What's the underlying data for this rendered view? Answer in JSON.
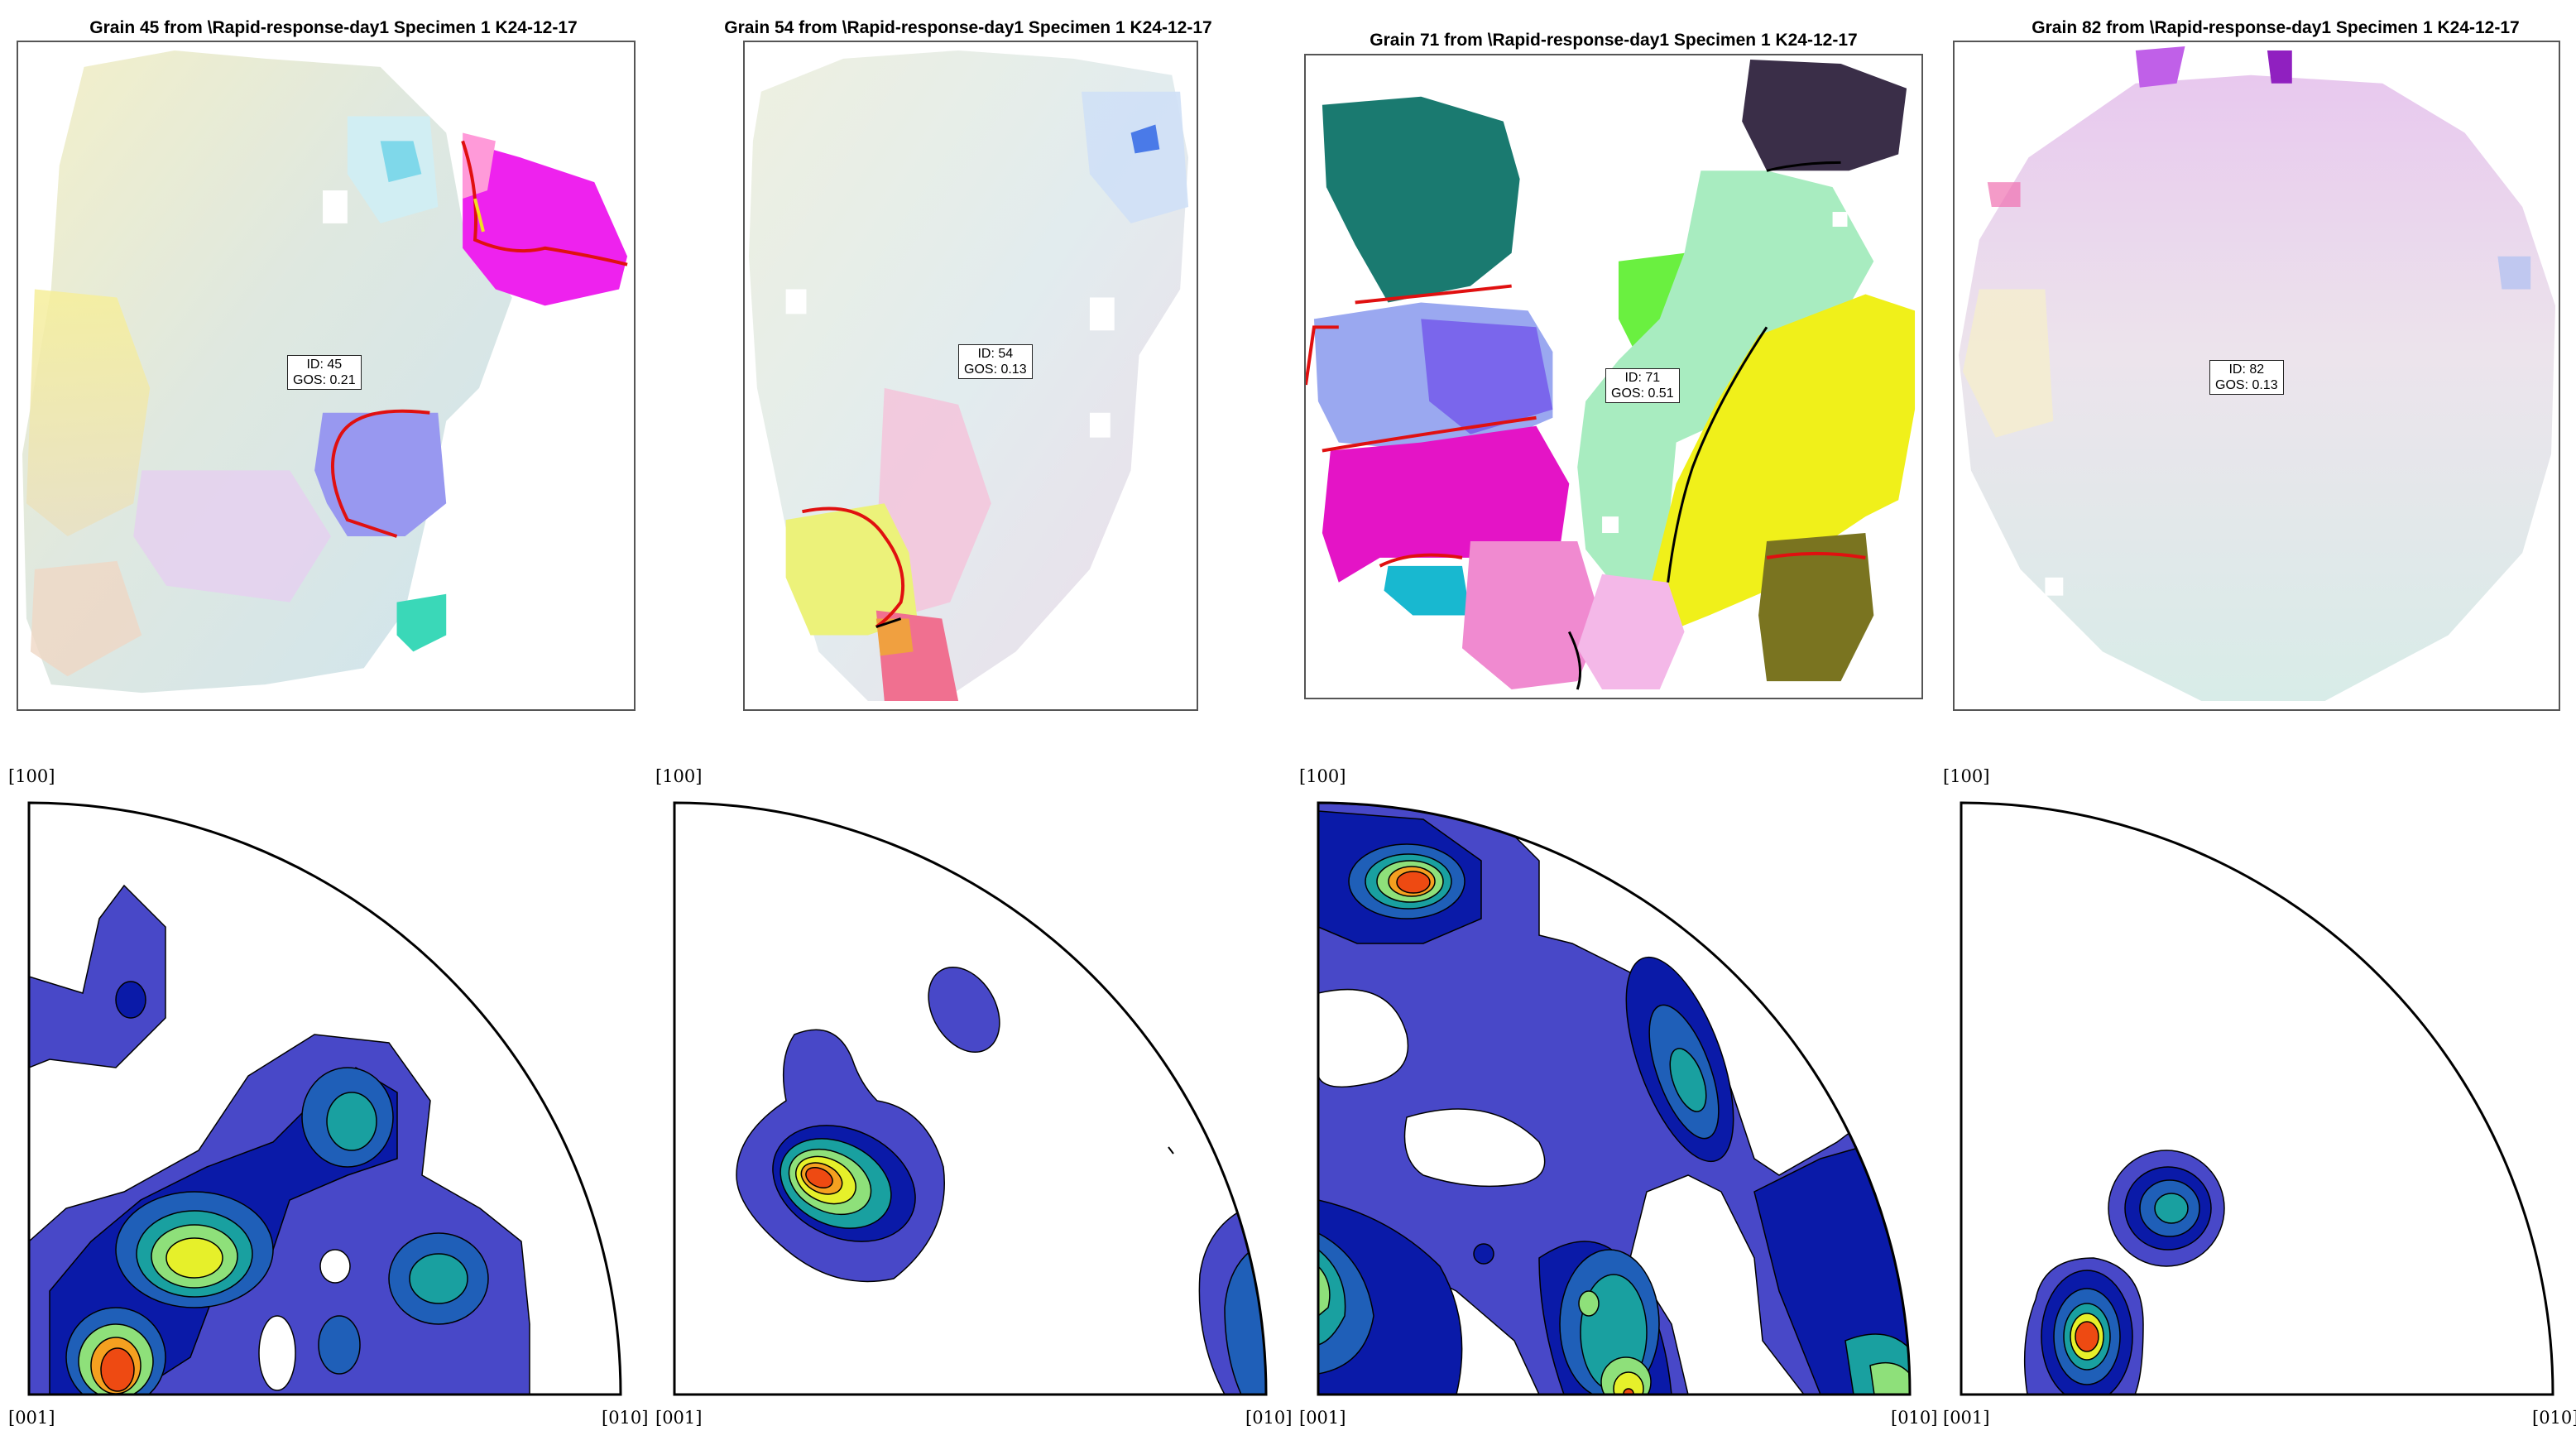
{
  "grains": [
    {
      "title": "Grain 45 from \\Rapid-response-day1 Specimen 1 K24-12-17",
      "id_label": "ID: 45",
      "gos_label": "GOS: 0.21"
    },
    {
      "title": "Grain 54 from \\Rapid-response-day1 Specimen 1 K24-12-17",
      "id_label": "ID: 54",
      "gos_label": "GOS: 0.13"
    },
    {
      "title": "Grain 71 from \\Rapid-response-day1 Specimen 1 K24-12-17",
      "id_label": "ID: 71",
      "gos_label": "GOS: 0.51"
    },
    {
      "title": "Grain 82 from \\Rapid-response-day1 Specimen 1 K24-12-17",
      "id_label": "ID: 82",
      "gos_label": "GOS: 0.13"
    }
  ],
  "ipf_labels": {
    "top": "[100]",
    "left": "[001]",
    "right": "[010]"
  },
  "contour_colors": [
    "#4848c8",
    "#0a1aa8",
    "#1f5fb8",
    "#19a0a0",
    "#2bd0a0",
    "#8ee07a",
    "#e6f02a",
    "#f5a020",
    "#ee4a12"
  ],
  "colors": {
    "grain_boundary": "#e01010",
    "twin_boundary": "#f0e020",
    "black_boundary": "#000000"
  }
}
